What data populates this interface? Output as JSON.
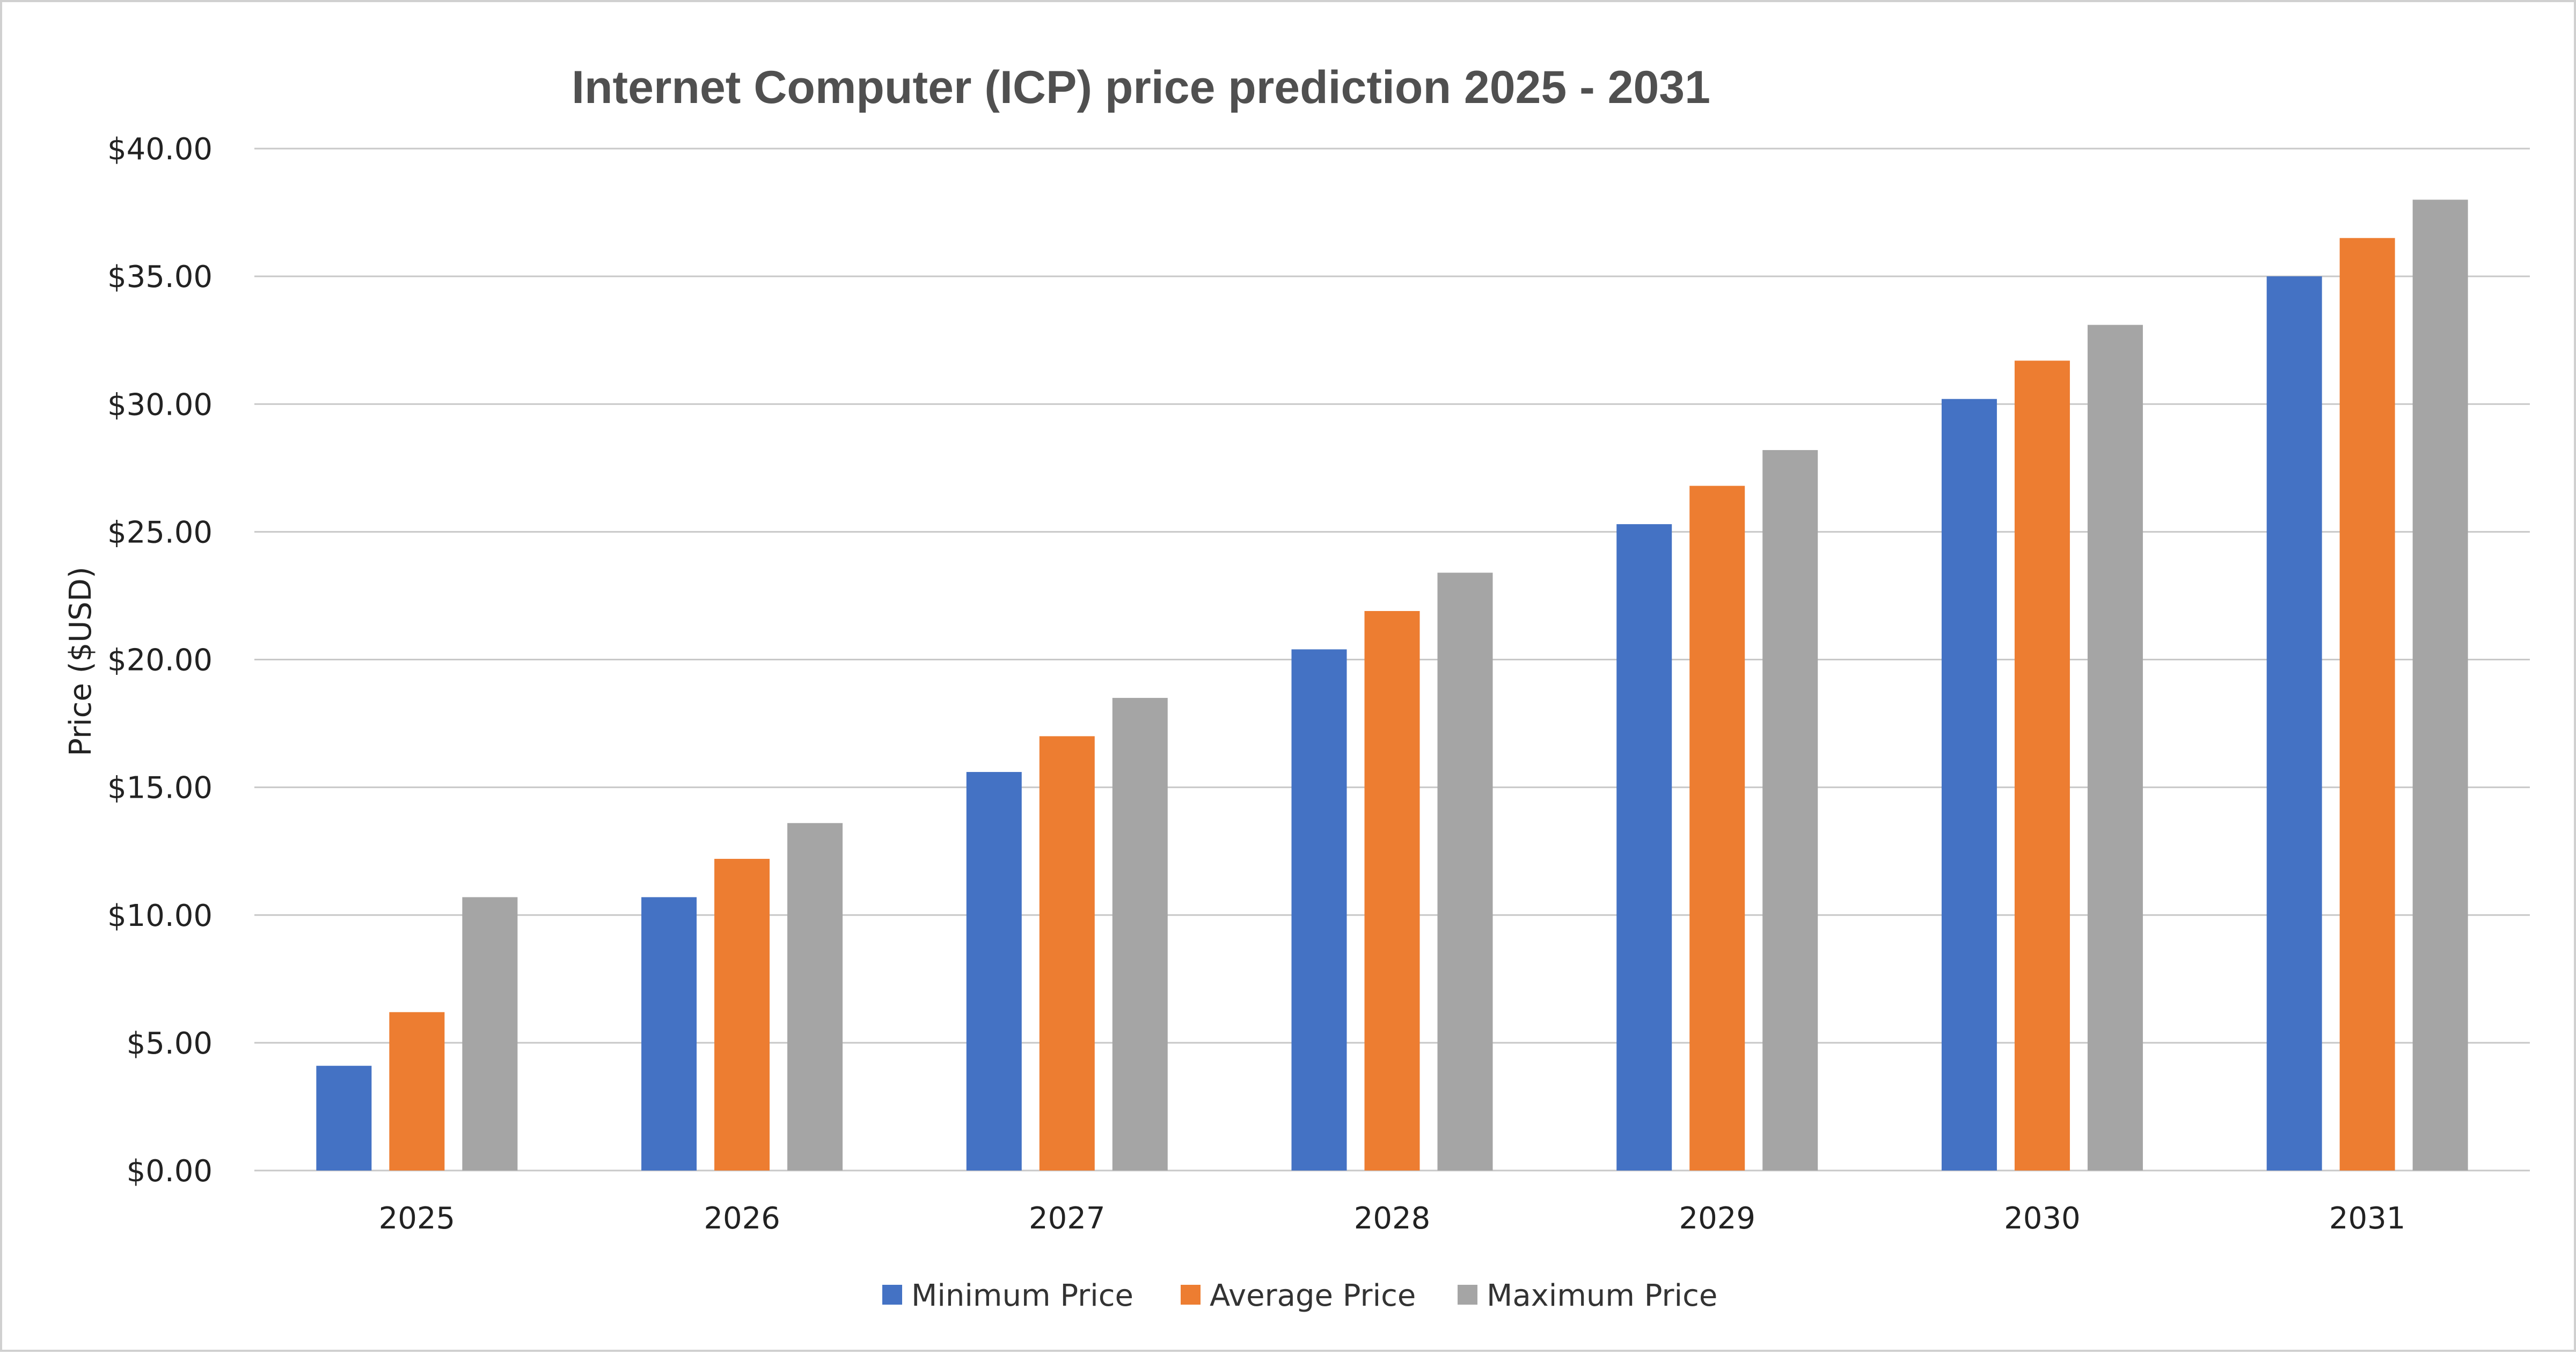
{
  "chart_data": {
    "type": "bar",
    "title": "Internet Computer (ICP) price prediction 2025 - 2031",
    "xlabel": "",
    "ylabel": "Price ($USD)",
    "ylim": [
      0,
      40
    ],
    "ytick_step": 5,
    "ytick_labels": [
      "$0.00",
      "$5.00",
      "$10.00",
      "$15.00",
      "$20.00",
      "$25.00",
      "$30.00",
      "$35.00",
      "$40.00"
    ],
    "categories": [
      "2025",
      "2026",
      "2027",
      "2028",
      "2029",
      "2030",
      "2031"
    ],
    "grid": true,
    "legend_position": "bottom",
    "series": [
      {
        "name": "Minimum Price",
        "color": "#4472c4",
        "values": [
          4.1,
          10.7,
          15.6,
          20.4,
          25.3,
          30.2,
          35.0
        ]
      },
      {
        "name": "Average Price",
        "color": "#ed7d31",
        "values": [
          6.2,
          12.2,
          17.0,
          21.9,
          26.8,
          31.7,
          36.5
        ]
      },
      {
        "name": "Maximum Price",
        "color": "#a5a5a5",
        "values": [
          10.7,
          13.6,
          18.5,
          23.4,
          28.2,
          33.1,
          38.0
        ]
      }
    ]
  }
}
